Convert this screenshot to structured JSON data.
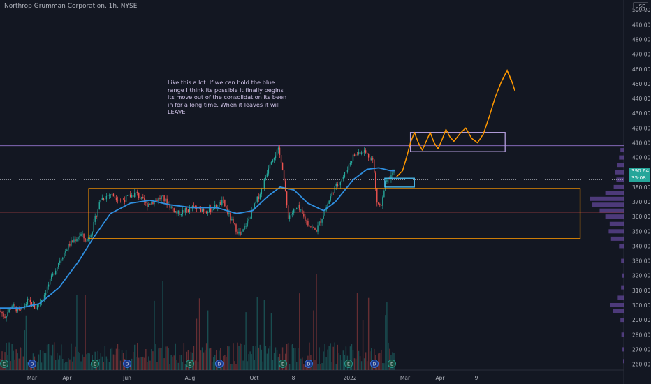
{
  "header": {
    "title": "Northrop Grumman Corporation, 1h, NYSE"
  },
  "currency_button": "USD",
  "annotation_text": "Like this a lot. If we can hold the blue range I think its possible it finally begins its move out of the consolidation its been in for a long time. When it leaves it will LEAVE",
  "price_tags": {
    "last_price": "390.64",
    "countdown": "35:08"
  },
  "colors": {
    "background": "#131722",
    "candle_up": "#26a69a",
    "candle_down": "#ef5350",
    "moving_average": "#2f8fe0",
    "consolidation_box": "#ff9800",
    "target_box": "#b39ddb",
    "entry_box": "#4fc3f7",
    "projection_path": "#ff9800",
    "volume_profile": "#7e57c2",
    "last_price_tag": "#26a69a"
  },
  "event_markers": [
    "E",
    "D",
    "E",
    "D",
    "E",
    "D",
    "E",
    "D",
    "E",
    "D",
    "E"
  ],
  "chart_data": {
    "type": "candlestick",
    "title": "Northrop Grumman Corporation, 1h, NYSE",
    "xlabel": "",
    "ylabel": "",
    "currency": "USD",
    "x_tick_labels": [
      "Mar",
      "Apr",
      "Jun",
      "Aug",
      "Oct",
      "8",
      "2022",
      "Mar",
      "Apr",
      "9"
    ],
    "y_ticks": [
      260,
      270,
      280,
      290,
      300,
      310,
      320,
      330,
      340,
      350,
      360,
      370,
      380,
      390,
      400,
      410,
      420,
      430,
      440,
      450,
      460,
      470,
      480,
      490,
      500
    ],
    "ylim": [
      256,
      502
    ],
    "last_price": 390.64,
    "countdown": "35:08",
    "price_path": [
      {
        "t": 0,
        "p": 296
      },
      {
        "t": 0.012,
        "p": 292
      },
      {
        "t": 0.03,
        "p": 300
      },
      {
        "t": 0.05,
        "p": 295
      },
      {
        "t": 0.07,
        "p": 303
      },
      {
        "t": 0.09,
        "p": 298
      },
      {
        "t": 0.11,
        "p": 306
      },
      {
        "t": 0.13,
        "p": 318
      },
      {
        "t": 0.15,
        "p": 330
      },
      {
        "t": 0.175,
        "p": 341
      },
      {
        "t": 0.205,
        "p": 348
      },
      {
        "t": 0.22,
        "p": 343
      },
      {
        "t": 0.235,
        "p": 352
      },
      {
        "t": 0.255,
        "p": 372
      },
      {
        "t": 0.28,
        "p": 375
      },
      {
        "t": 0.31,
        "p": 371
      },
      {
        "t": 0.345,
        "p": 376
      },
      {
        "t": 0.37,
        "p": 368
      },
      {
        "t": 0.41,
        "p": 373
      },
      {
        "t": 0.45,
        "p": 362
      },
      {
        "t": 0.49,
        "p": 366
      },
      {
        "t": 0.53,
        "p": 364
      },
      {
        "t": 0.565,
        "p": 370
      },
      {
        "t": 0.59,
        "p": 355
      },
      {
        "t": 0.61,
        "p": 347
      },
      {
        "t": 0.635,
        "p": 361
      },
      {
        "t": 0.665,
        "p": 380
      },
      {
        "t": 0.685,
        "p": 398
      },
      {
        "t": 0.705,
        "p": 405
      },
      {
        "t": 0.715,
        "p": 396
      },
      {
        "t": 0.722,
        "p": 378
      },
      {
        "t": 0.73,
        "p": 360
      },
      {
        "t": 0.755,
        "p": 366
      },
      {
        "t": 0.775,
        "p": 357
      },
      {
        "t": 0.8,
        "p": 350
      },
      {
        "t": 0.82,
        "p": 362
      },
      {
        "t": 0.845,
        "p": 378
      },
      {
        "t": 0.87,
        "p": 387
      },
      {
        "t": 0.895,
        "p": 401
      },
      {
        "t": 0.92,
        "p": 405
      },
      {
        "t": 0.945,
        "p": 398
      },
      {
        "t": 0.955,
        "p": 370
      },
      {
        "t": 0.965,
        "p": 366
      },
      {
        "t": 0.978,
        "p": 383
      },
      {
        "t": 1,
        "p": 390.6
      }
    ],
    "moving_average": [
      {
        "t": 0,
        "p": 298
      },
      {
        "t": 0.05,
        "p": 298
      },
      {
        "t": 0.1,
        "p": 301
      },
      {
        "t": 0.15,
        "p": 312
      },
      {
        "t": 0.2,
        "p": 330
      },
      {
        "t": 0.235,
        "p": 345
      },
      {
        "t": 0.28,
        "p": 362
      },
      {
        "t": 0.33,
        "p": 369
      },
      {
        "t": 0.38,
        "p": 371
      },
      {
        "t": 0.43,
        "p": 368
      },
      {
        "t": 0.49,
        "p": 366
      },
      {
        "t": 0.55,
        "p": 366
      },
      {
        "t": 0.6,
        "p": 362
      },
      {
        "t": 0.64,
        "p": 364
      },
      {
        "t": 0.68,
        "p": 374
      },
      {
        "t": 0.71,
        "p": 380
      },
      {
        "t": 0.745,
        "p": 378
      },
      {
        "t": 0.78,
        "p": 369
      },
      {
        "t": 0.82,
        "p": 364
      },
      {
        "t": 0.85,
        "p": 370
      },
      {
        "t": 0.895,
        "p": 385
      },
      {
        "t": 0.93,
        "p": 392
      },
      {
        "t": 0.96,
        "p": 393
      },
      {
        "t": 0.99,
        "p": 391
      },
      {
        "t": 1,
        "p": 391
      }
    ],
    "volume_profile": [
      {
        "price": 262,
        "volume": 0.02
      },
      {
        "price": 270,
        "volume": 0.04
      },
      {
        "price": 280,
        "volume": 0.07
      },
      {
        "price": 290,
        "volume": 0.1
      },
      {
        "price": 296,
        "volume": 0.32
      },
      {
        "price": 300,
        "volume": 0.4
      },
      {
        "price": 305,
        "volume": 0.18
      },
      {
        "price": 312,
        "volume": 0.08
      },
      {
        "price": 320,
        "volume": 0.06
      },
      {
        "price": 330,
        "volume": 0.08
      },
      {
        "price": 340,
        "volume": 0.14
      },
      {
        "price": 345,
        "volume": 0.38
      },
      {
        "price": 350,
        "volume": 0.45
      },
      {
        "price": 355,
        "volume": 0.42
      },
      {
        "price": 360,
        "volume": 0.55
      },
      {
        "price": 364,
        "volume": 0.72
      },
      {
        "price": 368,
        "volume": 0.95
      },
      {
        "price": 372,
        "volume": 1.0
      },
      {
        "price": 376,
        "volume": 0.55
      },
      {
        "price": 380,
        "volume": 0.3
      },
      {
        "price": 385,
        "volume": 0.22
      },
      {
        "price": 390,
        "volume": 0.26
      },
      {
        "price": 395,
        "volume": 0.2
      },
      {
        "price": 400,
        "volume": 0.14
      },
      {
        "price": 405,
        "volume": 0.1
      }
    ],
    "horizontal_lines": [
      {
        "price": 408,
        "color": "#9575cd"
      },
      {
        "price": 385,
        "color": "#b2b5be",
        "style": "dotted"
      },
      {
        "price": 363,
        "color": "#ef5350"
      },
      {
        "price": 365,
        "color": "#ab47bc"
      }
    ],
    "consolidation_box": {
      "t0": 0.225,
      "t1": 1.47,
      "p_low": 345,
      "p_high": 379
    },
    "target_box": {
      "t0": 1.04,
      "t1": 1.28,
      "p_low": 404,
      "p_high": 417
    },
    "entry_box": {
      "t0": 0.975,
      "t1": 1.05,
      "p_low": 380,
      "p_high": 386
    },
    "projection_path": [
      {
        "t": 1.005,
        "p": 387
      },
      {
        "t": 1.02,
        "p": 391
      },
      {
        "t": 1.03,
        "p": 400
      },
      {
        "t": 1.04,
        "p": 410
      },
      {
        "t": 1.05,
        "p": 417
      },
      {
        "t": 1.06,
        "p": 410
      },
      {
        "t": 1.07,
        "p": 405
      },
      {
        "t": 1.08,
        "p": 411
      },
      {
        "t": 1.09,
        "p": 417
      },
      {
        "t": 1.1,
        "p": 410
      },
      {
        "t": 1.11,
        "p": 406
      },
      {
        "t": 1.12,
        "p": 412
      },
      {
        "t": 1.13,
        "p": 419
      },
      {
        "t": 1.14,
        "p": 414
      },
      {
        "t": 1.15,
        "p": 411
      },
      {
        "t": 1.165,
        "p": 416
      },
      {
        "t": 1.18,
        "p": 420
      },
      {
        "t": 1.195,
        "p": 413
      },
      {
        "t": 1.21,
        "p": 410
      },
      {
        "t": 1.225,
        "p": 416
      },
      {
        "t": 1.24,
        "p": 428
      },
      {
        "t": 1.255,
        "p": 441
      },
      {
        "t": 1.27,
        "p": 451
      },
      {
        "t": 1.285,
        "p": 459
      },
      {
        "t": 1.295,
        "p": 453
      },
      {
        "t": 1.305,
        "p": 445
      }
    ]
  }
}
